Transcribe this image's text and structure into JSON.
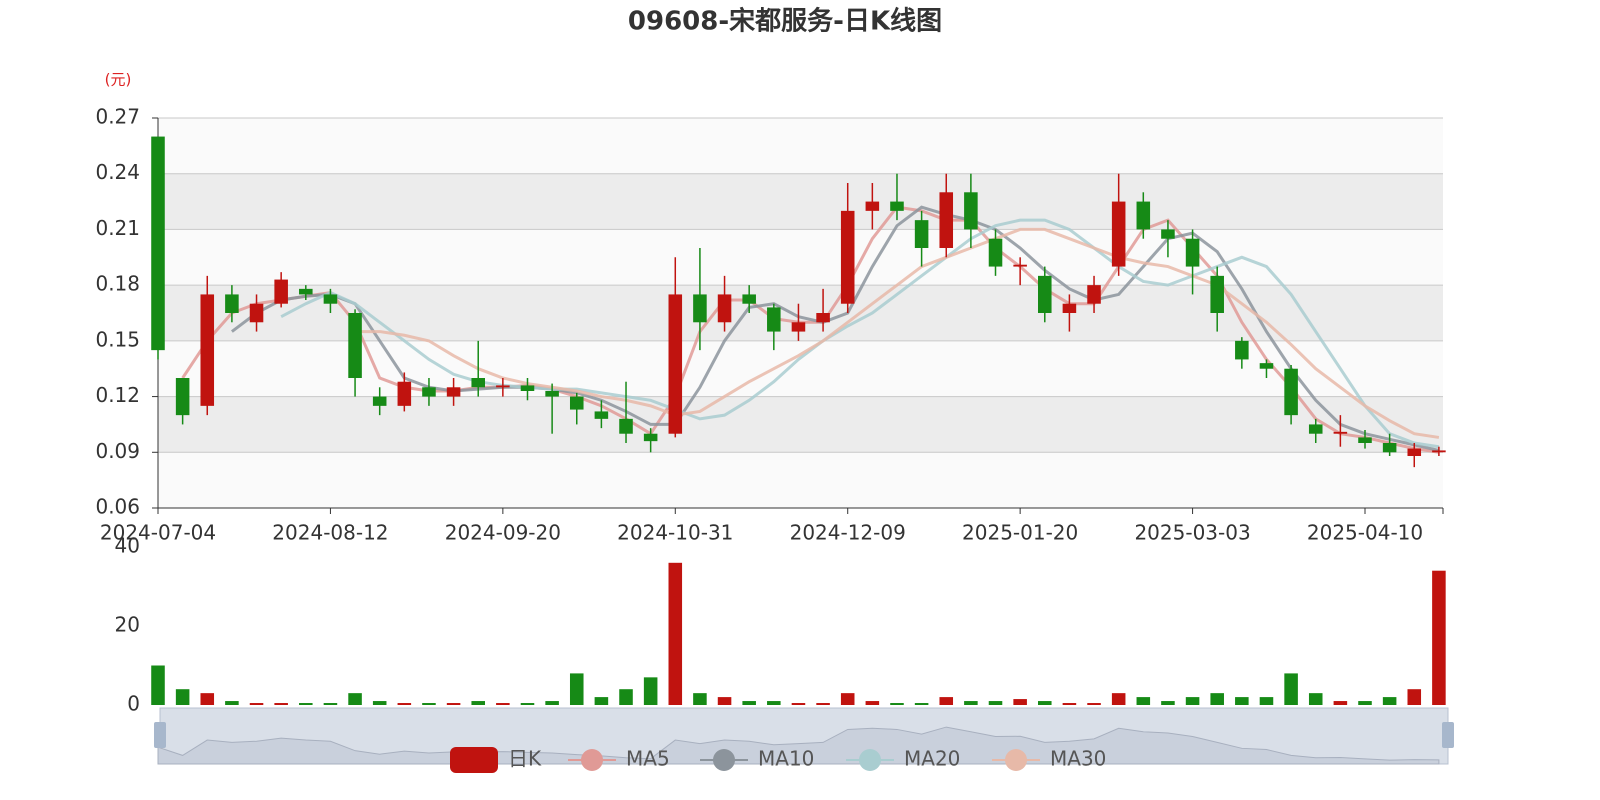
{
  "chart_data": {
    "type": "candlestick",
    "title": "09608-宋都服务-日K线图",
    "unit": "(元)",
    "candle_name": "日K",
    "up_color": "#c0130f",
    "down_color": "#168a16",
    "categories": [
      "2024-07-04",
      null,
      null,
      null,
      null,
      null,
      null,
      "2024-08-12",
      null,
      null,
      null,
      null,
      null,
      null,
      "2024-09-20",
      null,
      null,
      null,
      null,
      null,
      null,
      "2024-10-31",
      null,
      null,
      null,
      null,
      null,
      null,
      "2024-12-09",
      null,
      null,
      null,
      null,
      null,
      null,
      "2025-01-20",
      null,
      null,
      null,
      null,
      null,
      null,
      "2025-03-03",
      null,
      null,
      null,
      null,
      null,
      null,
      "2025-04-10",
      null,
      null,
      null
    ],
    "open": [
      0.26,
      0.13,
      0.115,
      0.175,
      0.16,
      0.17,
      0.178,
      0.175,
      0.165,
      0.12,
      0.115,
      0.125,
      0.12,
      0.13,
      0.125,
      0.126,
      0.123,
      0.12,
      0.112,
      0.108,
      0.1,
      0.1,
      0.175,
      0.16,
      0.175,
      0.168,
      0.155,
      0.16,
      0.17,
      0.22,
      0.225,
      0.215,
      0.2,
      0.23,
      0.205,
      0.19,
      0.185,
      0.165,
      0.17,
      0.19,
      0.225,
      0.21,
      0.205,
      0.185,
      0.15,
      0.138,
      0.135,
      0.105,
      0.1,
      0.098,
      0.095,
      0.088,
      0.09
    ],
    "close": [
      0.145,
      0.11,
      0.175,
      0.165,
      0.17,
      0.183,
      0.175,
      0.17,
      0.13,
      0.115,
      0.128,
      0.12,
      0.125,
      0.125,
      0.126,
      0.123,
      0.12,
      0.113,
      0.108,
      0.1,
      0.096,
      0.175,
      0.16,
      0.175,
      0.17,
      0.155,
      0.16,
      0.165,
      0.22,
      0.225,
      0.22,
      0.2,
      0.23,
      0.21,
      0.19,
      0.191,
      0.165,
      0.17,
      0.18,
      0.225,
      0.21,
      0.205,
      0.19,
      0.165,
      0.14,
      0.135,
      0.11,
      0.1,
      0.101,
      0.095,
      0.09,
      0.092,
      0.091
    ],
    "high": [
      0.26,
      0.13,
      0.185,
      0.18,
      0.175,
      0.187,
      0.18,
      0.178,
      0.167,
      0.125,
      0.133,
      0.13,
      0.13,
      0.15,
      0.13,
      0.13,
      0.127,
      0.122,
      0.118,
      0.128,
      0.103,
      0.195,
      0.2,
      0.185,
      0.18,
      0.17,
      0.17,
      0.178,
      0.235,
      0.235,
      0.24,
      0.22,
      0.24,
      0.24,
      0.21,
      0.195,
      0.19,
      0.175,
      0.185,
      0.24,
      0.23,
      0.215,
      0.21,
      0.19,
      0.152,
      0.14,
      0.137,
      0.108,
      0.11,
      0.102,
      0.1,
      0.095,
      0.093
    ],
    "low": [
      0.14,
      0.105,
      0.11,
      0.16,
      0.155,
      0.168,
      0.172,
      0.165,
      0.12,
      0.11,
      0.112,
      0.115,
      0.115,
      0.12,
      0.12,
      0.118,
      0.1,
      0.105,
      0.103,
      0.095,
      0.09,
      0.098,
      0.145,
      0.155,
      0.165,
      0.145,
      0.15,
      0.155,
      0.165,
      0.21,
      0.215,
      0.19,
      0.195,
      0.2,
      0.185,
      0.18,
      0.16,
      0.155,
      0.165,
      0.185,
      0.205,
      0.195,
      0.175,
      0.155,
      0.135,
      0.13,
      0.105,
      0.095,
      0.093,
      0.092,
      0.088,
      0.082,
      0.088
    ],
    "volume": [
      10,
      4,
      3,
      1,
      0.5,
      0.5,
      0.5,
      0.5,
      3,
      1,
      0.5,
      0.5,
      0.5,
      1,
      0.5,
      0.5,
      1,
      8,
      2,
      4,
      7,
      36,
      3,
      2,
      1,
      1,
      0.5,
      0.5,
      3,
      1,
      0.5,
      0.5,
      2,
      1,
      1,
      1.5,
      1,
      0.5,
      0.5,
      3,
      2,
      1,
      2,
      3,
      2,
      2,
      8,
      3,
      1,
      1,
      2,
      4,
      34
    ],
    "ma": [
      {
        "name": "MA5",
        "color": "#e09a96",
        "values": [
          null,
          0.13,
          0.15,
          0.165,
          0.17,
          0.172,
          0.174,
          0.176,
          0.16,
          0.13,
          0.125,
          0.123,
          0.123,
          0.125,
          0.125,
          0.126,
          0.124,
          0.12,
          0.115,
          0.108,
          0.1,
          0.12,
          0.155,
          0.172,
          0.172,
          0.162,
          0.16,
          0.16,
          0.18,
          0.205,
          0.222,
          0.22,
          0.215,
          0.215,
          0.2,
          0.19,
          0.178,
          0.17,
          0.17,
          0.19,
          0.21,
          0.215,
          0.2,
          0.185,
          0.16,
          0.14,
          0.125,
          0.108,
          0.1,
          0.098,
          0.095,
          0.092,
          0.09
        ]
      },
      {
        "name": "MA10",
        "color": "#8c949c",
        "values": [
          null,
          null,
          null,
          0.155,
          0.165,
          0.172,
          0.174,
          0.175,
          0.17,
          0.15,
          0.13,
          0.125,
          0.123,
          0.124,
          0.125,
          0.125,
          0.124,
          0.122,
          0.118,
          0.112,
          0.105,
          0.105,
          0.125,
          0.15,
          0.168,
          0.17,
          0.163,
          0.16,
          0.165,
          0.19,
          0.212,
          0.222,
          0.218,
          0.215,
          0.21,
          0.2,
          0.188,
          0.178,
          0.172,
          0.175,
          0.19,
          0.205,
          0.208,
          0.198,
          0.178,
          0.155,
          0.135,
          0.118,
          0.105,
          0.1,
          0.097,
          0.094,
          0.091
        ]
      },
      {
        "name": "MA20",
        "color": "#a9cdd0",
        "values": [
          null,
          null,
          null,
          null,
          null,
          0.163,
          0.17,
          0.176,
          0.17,
          0.16,
          0.15,
          0.14,
          0.132,
          0.128,
          0.126,
          0.125,
          0.124,
          0.124,
          0.122,
          0.12,
          0.118,
          0.113,
          0.108,
          0.11,
          0.118,
          0.128,
          0.14,
          0.15,
          0.158,
          0.165,
          0.175,
          0.185,
          0.195,
          0.205,
          0.212,
          0.215,
          0.215,
          0.21,
          0.2,
          0.19,
          0.182,
          0.18,
          0.185,
          0.19,
          0.195,
          0.19,
          0.175,
          0.155,
          0.135,
          0.115,
          0.1,
          0.095,
          0.093
        ]
      },
      {
        "name": "MA30",
        "color": "#e7b9a8",
        "values": [
          null,
          null,
          null,
          null,
          null,
          null,
          null,
          null,
          0.155,
          0.155,
          0.153,
          0.15,
          0.142,
          0.135,
          0.13,
          0.127,
          0.125,
          0.123,
          0.12,
          0.118,
          0.115,
          0.11,
          0.112,
          0.12,
          0.128,
          0.135,
          0.142,
          0.15,
          0.16,
          0.17,
          0.18,
          0.19,
          0.195,
          0.2,
          0.205,
          0.21,
          0.21,
          0.205,
          0.2,
          0.195,
          0.192,
          0.19,
          0.185,
          0.18,
          0.17,
          0.16,
          0.148,
          0.135,
          0.125,
          0.115,
          0.107,
          0.1,
          0.098
        ]
      }
    ],
    "ylim": [
      0.06,
      0.27
    ],
    "yticks": [
      0.06,
      0.09,
      0.12,
      0.15,
      0.18,
      0.21,
      0.24,
      0.27
    ],
    "volume_ylim": [
      0,
      40
    ],
    "volume_yticks": [
      0,
      20,
      40
    ]
  }
}
